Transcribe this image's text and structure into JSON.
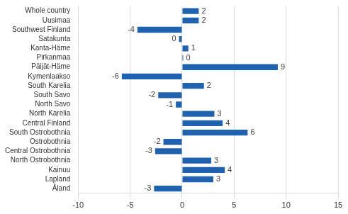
{
  "chart_data": {
    "type": "bar",
    "orientation": "horizontal",
    "categories": [
      "Whole country",
      "Uusimaa",
      "Southwest Finland",
      "Satakunta",
      "Kanta-Häme",
      "Pirkanmaa",
      "Päijät-Häme",
      "Kymenlaakso",
      "South Karelia",
      "South Savo",
      "North Savo",
      "North Karelia",
      "Central Finland",
      "South Ostrobothnia",
      "Ostrobothnia",
      "Central Ostrobothnia",
      "North Ostrobothnia",
      "Kainuu",
      "Lapland",
      "Åland"
    ],
    "values": [
      1.6,
      1.6,
      -4.3,
      -0.3,
      0.6,
      0.1,
      9.2,
      -5.8,
      2.1,
      -2.3,
      -0.6,
      3.1,
      3.9,
      6.3,
      -1.8,
      -2.6,
      2.8,
      4.1,
      3.0,
      -2.7
    ],
    "value_labels": [
      "2",
      "2",
      "-4",
      "0",
      "1",
      "0",
      "9",
      "-6",
      "2",
      "-2",
      "-1",
      "3",
      "4",
      "6",
      "-2",
      "-3",
      "3",
      "4",
      "3",
      "-3"
    ],
    "color": "#1f63b0",
    "xlim": [
      -10,
      15
    ],
    "xticks": [
      -10,
      -5,
      0,
      5,
      10,
      15
    ],
    "grid": true,
    "data_labels": true
  }
}
